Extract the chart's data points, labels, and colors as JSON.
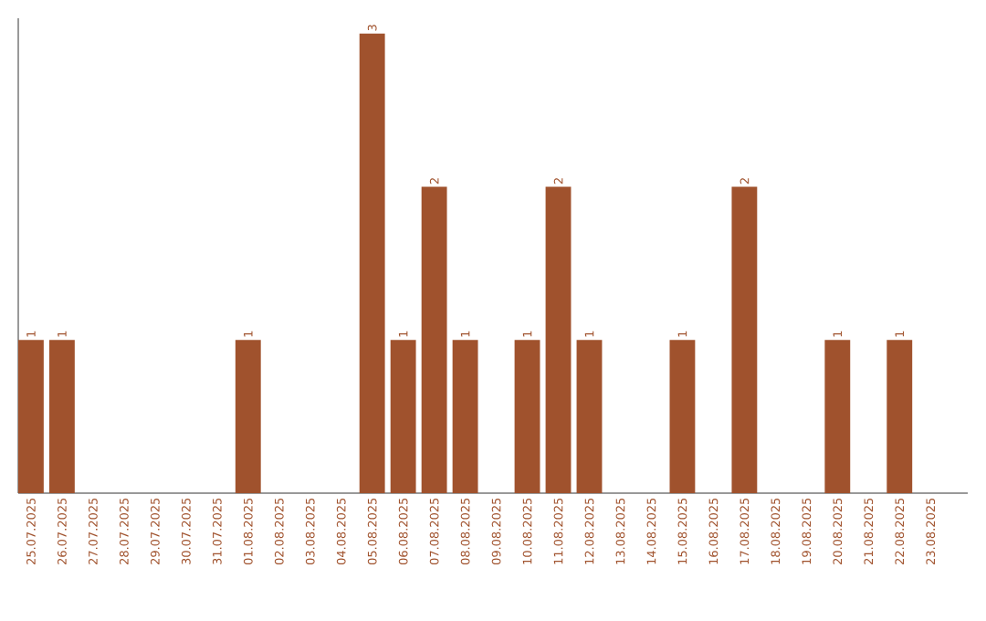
{
  "chart_data": {
    "type": "bar",
    "color": "#a0522d",
    "categories": [
      "25.07.2025",
      "26.07.2025",
      "27.07.2025",
      "28.07.2025",
      "29.07.2025",
      "30.07.2025",
      "31.07.2025",
      "01.08.2025",
      "02.08.2025",
      "03.08.2025",
      "04.08.2025",
      "05.08.2025",
      "06.08.2025",
      "07.08.2025",
      "08.08.2025",
      "09.08.2025",
      "10.08.2025",
      "11.08.2025",
      "12.08.2025",
      "13.08.2025",
      "14.08.2025",
      "15.08.2025",
      "16.08.2025",
      "17.08.2025",
      "18.08.2025",
      "19.08.2025",
      "20.08.2025",
      "21.08.2025",
      "22.08.2025",
      "23.08.2025"
    ],
    "values": [
      1,
      1,
      0,
      0,
      0,
      0,
      0,
      1,
      0,
      0,
      0,
      3,
      1,
      2,
      1,
      0,
      1,
      2,
      1,
      0,
      0,
      1,
      0,
      2,
      0,
      0,
      1,
      0,
      1,
      0
    ],
    "value_labels": [
      "1",
      "1",
      null,
      null,
      null,
      null,
      null,
      "1",
      null,
      null,
      null,
      "3",
      "1",
      "2",
      "1",
      null,
      "1",
      "2",
      "1",
      null,
      null,
      "1",
      null,
      "2",
      null,
      null,
      "1",
      null,
      "1",
      null
    ],
    "ylim": [
      0,
      3.1
    ]
  }
}
